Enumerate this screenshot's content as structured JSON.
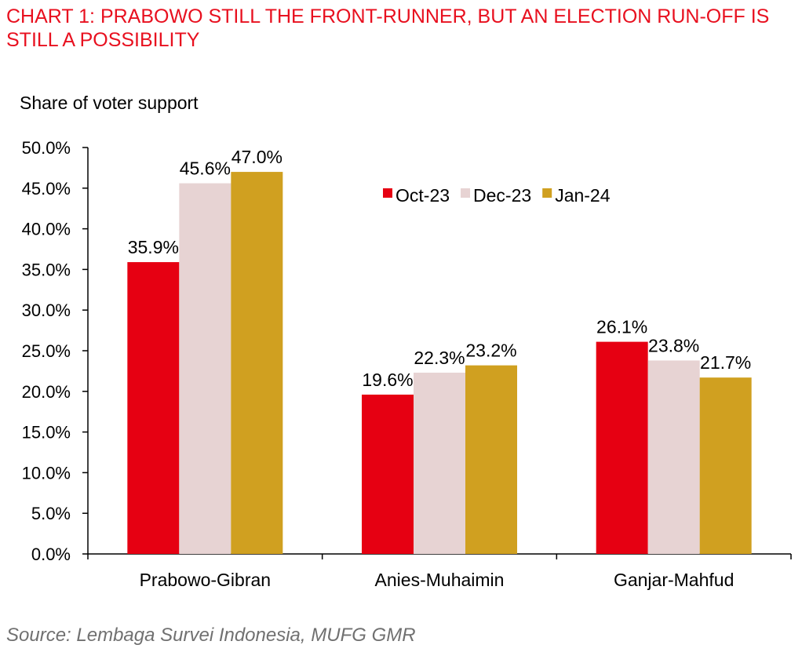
{
  "title": "CHART 1: PRABOWO STILL THE FRONT-RUNNER, BUT AN ELECTION RUN-OFF IS STILL A POSSIBILITY",
  "source": "Source: Lembaga Survei Indonesia, MUFG GMR",
  "chart_data": {
    "type": "bar",
    "ylabel": "Share of voter support",
    "xlabel": "",
    "ylim": [
      0,
      50
    ],
    "yticks": [
      "0.0%",
      "5.0%",
      "10.0%",
      "15.0%",
      "20.0%",
      "25.0%",
      "30.0%",
      "35.0%",
      "40.0%",
      "45.0%",
      "50.0%"
    ],
    "categories": [
      "Prabowo-Gibran",
      "Anies-Muhaimin",
      "Ganjar-Mahfud"
    ],
    "series": [
      {
        "name": "Oct-23",
        "color": "#e60012",
        "values": [
          35.9,
          19.6,
          26.1
        ]
      },
      {
        "name": "Dec-23",
        "color": "#e7d3d3",
        "values": [
          45.6,
          22.3,
          23.8
        ]
      },
      {
        "name": "Jan-24",
        "color": "#d0a020",
        "values": [
          47.0,
          23.2,
          21.7
        ]
      }
    ],
    "data_labels": true,
    "legend_position": "top-right",
    "grid": false
  }
}
